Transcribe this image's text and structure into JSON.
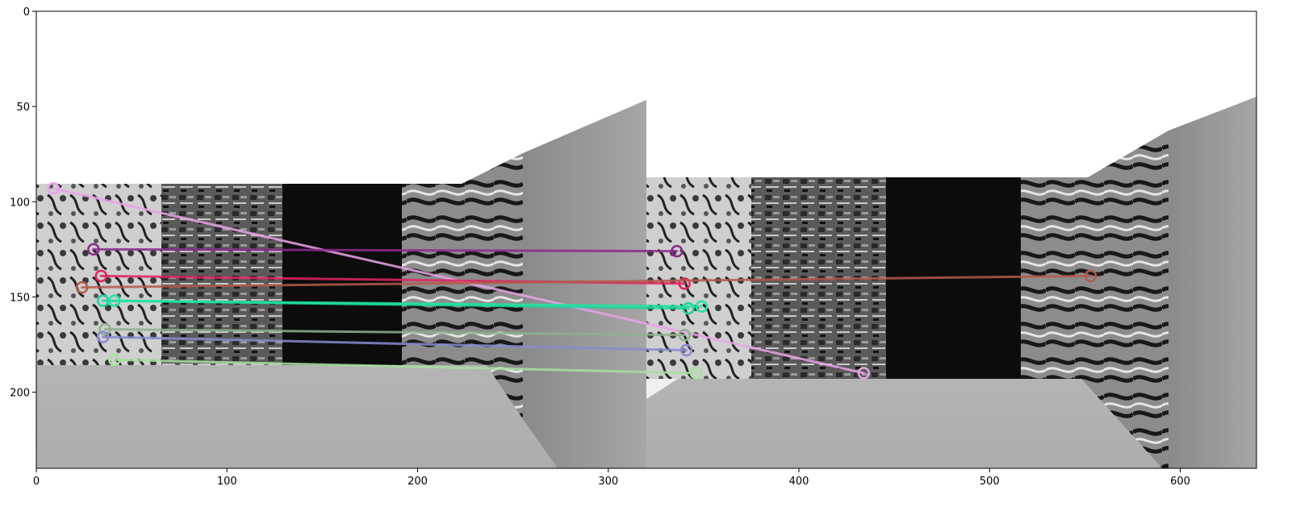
{
  "chart_data": {
    "type": "scatter",
    "title": "",
    "xlabel": "",
    "ylabel": "",
    "xlim": [
      0,
      640
    ],
    "ylim": [
      240,
      0
    ],
    "y_inverted": true,
    "grid": false,
    "xticks": [
      0,
      100,
      200,
      300,
      400,
      500,
      600
    ],
    "yticks": [
      0,
      50,
      100,
      150,
      200
    ],
    "background_image": "two grayscale rendered views of a textured corridor placed side by side (left view 0–320, right view 320–640)",
    "matches": [
      {
        "x1": 9,
        "y1": 93,
        "x2": 434,
        "y2": 190,
        "color": "#e9a3e9"
      },
      {
        "x1": 30,
        "y1": 125,
        "x2": 336,
        "y2": 126,
        "color": "#8b2a8b"
      },
      {
        "x1": 34,
        "y1": 139,
        "x2": 340,
        "y2": 143,
        "color": "#e0245e"
      },
      {
        "x1": 24,
        "y1": 145,
        "x2": 553,
        "y2": 139,
        "color": "#b35a4e"
      },
      {
        "x1": 35,
        "y1": 152,
        "x2": 342,
        "y2": 156,
        "color": "#1fd3a0"
      },
      {
        "x1": 41,
        "y1": 152,
        "x2": 349,
        "y2": 155,
        "color": "#22e6a0"
      },
      {
        "x1": 36,
        "y1": 167,
        "x2": 340,
        "y2": 170,
        "color": "#8fb08f"
      },
      {
        "x1": 35,
        "y1": 171,
        "x2": 341,
        "y2": 178,
        "color": "#8a8ad0"
      },
      {
        "x1": 41,
        "y1": 183,
        "x2": 346,
        "y2": 190,
        "color": "#a8e0a0"
      }
    ]
  }
}
